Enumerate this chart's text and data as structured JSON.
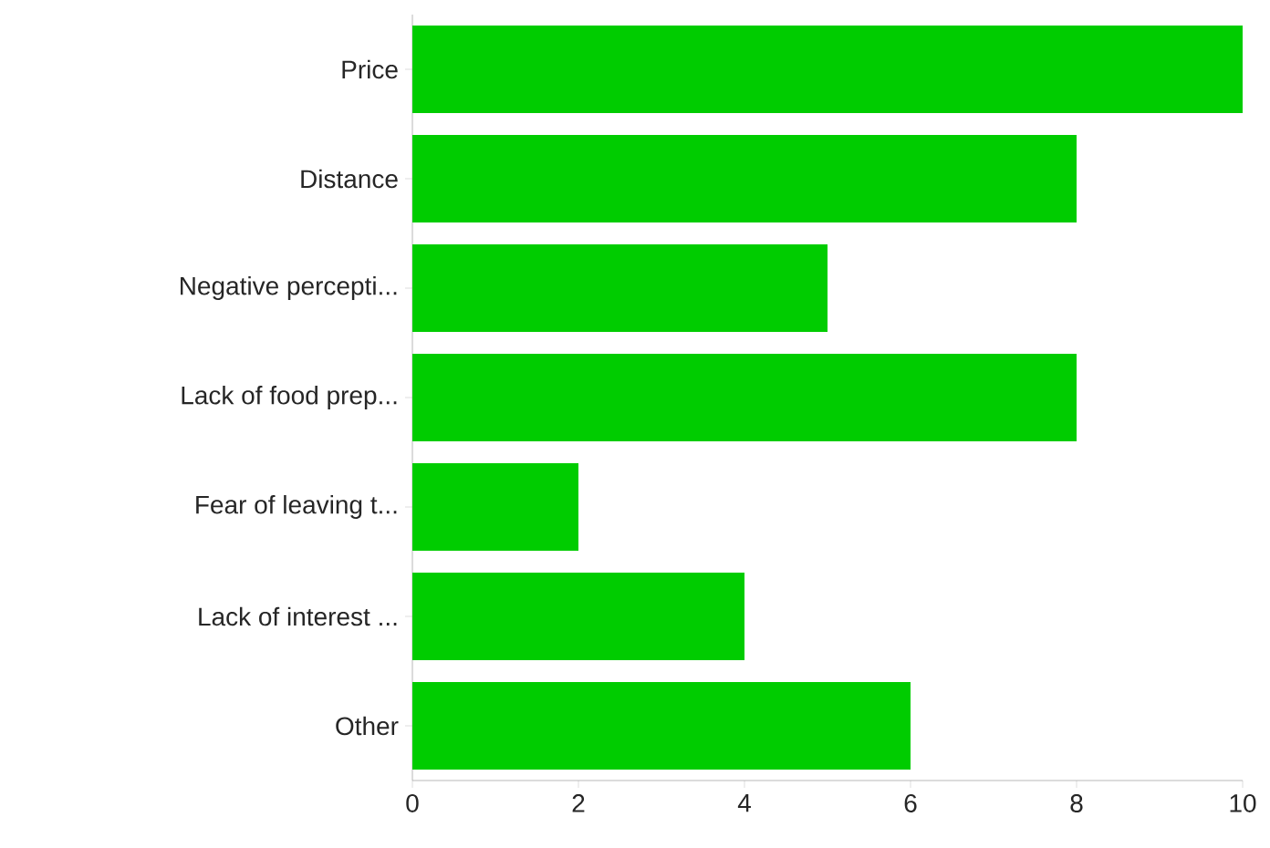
{
  "chart_data": {
    "type": "bar",
    "orientation": "horizontal",
    "categories": [
      "Price",
      "Distance",
      "Negative percepti...",
      "Lack of food prep...",
      "Fear of leaving t...",
      "Lack of interest ...",
      "Other"
    ],
    "values": [
      10,
      8,
      5,
      8,
      2,
      4,
      6
    ],
    "color": "#00cc00",
    "xlim": [
      0,
      10
    ],
    "xticks": [
      0,
      2,
      4,
      6,
      8,
      10
    ]
  }
}
